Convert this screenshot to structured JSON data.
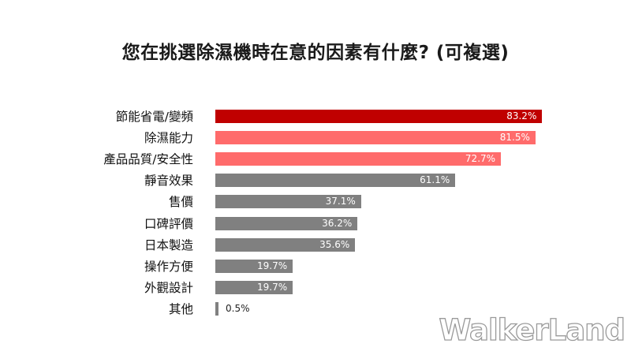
{
  "title": "您在挑選除濕機時在意的因素有什麼? (可複選)",
  "watermark": "WalkerLand",
  "colors": {
    "top": "#C00000",
    "highlight": "#FF6B6B",
    "other": "#808080"
  },
  "chart_data": {
    "type": "bar",
    "orientation": "horizontal",
    "title": "您在挑選除濕機時在意的因素有什麼? (可複選)",
    "xlabel": "",
    "ylabel": "",
    "categories": [
      "節能省電/變頻",
      "除濕能力",
      "產品品質/安全性",
      "靜音效果",
      "售價",
      "口碑評價",
      "日本製造",
      "操作方便",
      "外觀設計",
      "其他"
    ],
    "values": [
      83.2,
      81.5,
      72.7,
      61.1,
      37.1,
      36.2,
      35.6,
      19.7,
      19.7,
      0.5
    ],
    "value_labels": [
      "83.2%",
      "81.5%",
      "72.7%",
      "61.1%",
      "37.1%",
      "36.2%",
      "35.6%",
      "19.7%",
      "19.7%",
      "0.5%"
    ],
    "bar_colors": [
      "#C00000",
      "#FF6B6B",
      "#FF6B6B",
      "#808080",
      "#808080",
      "#808080",
      "#808080",
      "#808080",
      "#808080",
      "#808080"
    ],
    "unit": "%",
    "grid": false,
    "legend": "none",
    "axes_visible": false
  }
}
